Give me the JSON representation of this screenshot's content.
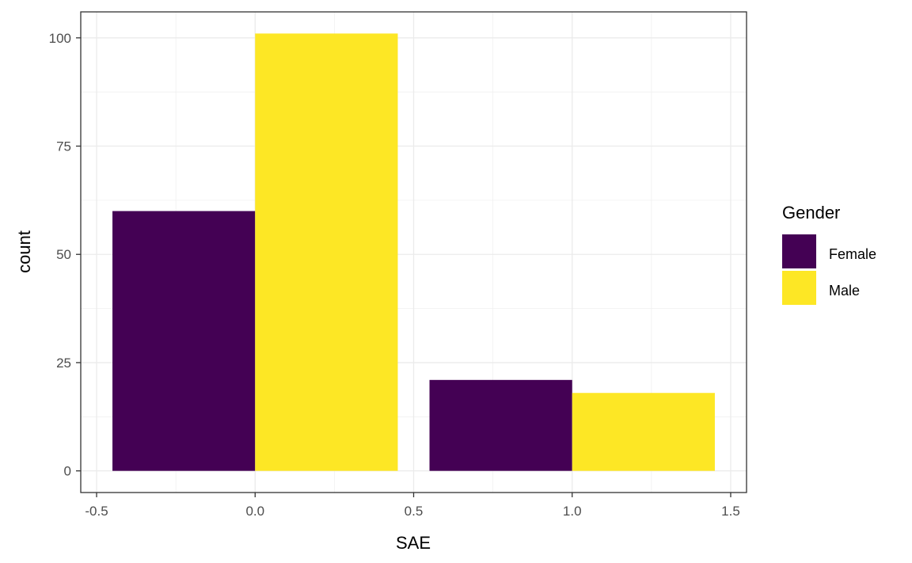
{
  "chart_data": {
    "type": "bar",
    "xlabel": "SAE",
    "ylabel": "count",
    "xlim": [
      -0.55,
      1.55
    ],
    "ylim": [
      -5,
      106
    ],
    "x_ticks": [
      -0.5,
      0.0,
      0.5,
      1.0,
      1.5
    ],
    "x_tick_labels": [
      "-0.5",
      "0.0",
      "0.5",
      "1.0",
      "1.5"
    ],
    "y_ticks": [
      0,
      25,
      50,
      75,
      100
    ],
    "y_tick_labels": [
      "0",
      "25",
      "50",
      "75",
      "100"
    ],
    "categories": [
      0,
      1
    ],
    "bar_width": 0.9,
    "position": "dodge",
    "series": [
      {
        "name": "Female",
        "color": "#440154",
        "values": [
          60,
          21
        ]
      },
      {
        "name": "Male",
        "color": "#FDE725",
        "values": [
          101,
          18
        ]
      }
    ],
    "grid": true,
    "legend": {
      "title": "Gender",
      "placement": "right"
    }
  }
}
